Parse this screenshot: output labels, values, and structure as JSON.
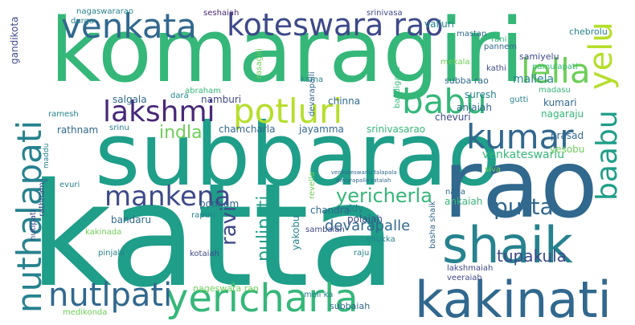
{
  "words": [
    {
      "text": "katta",
      "color": "#1f9e89"
    },
    {
      "text": "komaragiri",
      "color": "#35b779"
    },
    {
      "text": "subbarao",
      "color": "#1f9e89"
    },
    {
      "text": "rao",
      "color": "#31688e"
    },
    {
      "text": "kakinati",
      "color": "#31688e"
    },
    {
      "text": "shaik",
      "color": "#26828e"
    },
    {
      "text": "venkata",
      "color": "#31688e"
    },
    {
      "text": "koteswara rao",
      "color": "#3e4a89"
    },
    {
      "text": "yericharla",
      "color": "#35b779"
    },
    {
      "text": "nuthalapati",
      "color": "#26828e"
    },
    {
      "text": "kumar",
      "color": "#31688e"
    },
    {
      "text": "lakshmi",
      "color": "#482878"
    },
    {
      "text": "potluri",
      "color": "#b5de2b"
    },
    {
      "text": "babu",
      "color": "#35b779"
    },
    {
      "text": "lella",
      "color": "#6ece58"
    },
    {
      "text": "nutlpati",
      "color": "#31688e"
    },
    {
      "text": "mankena",
      "color": "#3e4a89"
    },
    {
      "text": "baabu",
      "color": "#1f9e89"
    },
    {
      "text": "yelu",
      "color": "#b5de2b"
    },
    {
      "text": "yericherla",
      "color": "#35b779"
    },
    {
      "text": "putta",
      "color": "#31688e"
    },
    {
      "text": "ravi",
      "color": "#3e4a89"
    },
    {
      "text": "indla",
      "color": "#6ece58"
    },
    {
      "text": "pulipati",
      "color": "#1f9e89"
    },
    {
      "text": "tupakula",
      "color": "#3e4a89"
    },
    {
      "text": "devarapalle",
      "color": "#31688e"
    },
    {
      "text": "venkateswarlu",
      "color": "#35b779"
    },
    {
      "text": "gandikota",
      "color": "#3e4a89"
    },
    {
      "text": "durga",
      "color": "#26828e"
    },
    {
      "text": "nagaswararao",
      "color": "#26828e"
    },
    {
      "text": "seshaiah",
      "color": "#482878"
    },
    {
      "text": "srinivasa",
      "color": "#3e4a89"
    },
    {
      "text": "valluri",
      "color": "#26828e"
    },
    {
      "text": "mastan",
      "color": "#31688e"
    },
    {
      "text": "chebrolu",
      "color": "#26828e"
    },
    {
      "text": "rani",
      "color": "#35b779"
    },
    {
      "text": "pannem",
      "color": "#31688e"
    },
    {
      "text": "samiyelu",
      "color": "#3e4a89"
    },
    {
      "text": "pamulapati",
      "color": "#35b779"
    },
    {
      "text": "mekala",
      "color": "#6ece58"
    },
    {
      "text": "kathi",
      "color": "#3e4a89"
    },
    {
      "text": "mallela",
      "color": "#26828e"
    },
    {
      "text": "subba rao",
      "color": "#31688e"
    },
    {
      "text": "rasagiri",
      "color": "#6ece58"
    },
    {
      "text": "abraham",
      "color": "#35b779"
    },
    {
      "text": "dara",
      "color": "#26828e"
    },
    {
      "text": "namburi",
      "color": "#3e4a89"
    },
    {
      "text": "salgala",
      "color": "#31688e"
    },
    {
      "text": "karna",
      "color": "#26828e"
    },
    {
      "text": "devarapalli",
      "color": "#31688e"
    },
    {
      "text": "bandigalla",
      "color": "#35b779"
    },
    {
      "text": "suresh",
      "color": "#26828e"
    },
    {
      "text": "madasu",
      "color": "#35b779"
    },
    {
      "text": "gutti",
      "color": "#26828e"
    },
    {
      "text": "kumari",
      "color": "#31688e"
    },
    {
      "text": "nagaraju",
      "color": "#35b779"
    },
    {
      "text": "anjaiah",
      "color": "#31688e"
    },
    {
      "text": "chinna",
      "color": "#31688e"
    },
    {
      "text": "ramesh",
      "color": "#26828e"
    },
    {
      "text": "srinu",
      "color": "#26828e"
    },
    {
      "text": "rathnam",
      "color": "#31688e"
    },
    {
      "text": "chamcharla",
      "color": "#31688e"
    },
    {
      "text": "jayamma",
      "color": "#31688e"
    },
    {
      "text": "srinivasarao",
      "color": "#35b779"
    },
    {
      "text": "chevuri",
      "color": "#3e4a89"
    },
    {
      "text": "prasad",
      "color": "#31688e"
    },
    {
      "text": "yesobu",
      "color": "#6ece58"
    },
    {
      "text": "bandaru",
      "color": "#31688e"
    },
    {
      "text": "evuri",
      "color": "#26828e"
    },
    {
      "text": "siva",
      "color": "#6ece58"
    },
    {
      "text": "naga",
      "color": "#31688e"
    },
    {
      "text": "ankaiah",
      "color": "#35b779"
    },
    {
      "text": "reddy",
      "color": "#26828e"
    },
    {
      "text": "ponnam",
      "color": "#31688e"
    },
    {
      "text": "chandra",
      "color": "#31688e"
    },
    {
      "text": "polaiah",
      "color": "#3e4a89"
    },
    {
      "text": "rapuri",
      "color": "#26828e"
    },
    {
      "text": "kakinada",
      "color": "#6ece58"
    },
    {
      "text": "sambaiah",
      "color": "#3e4a89"
    },
    {
      "text": "yakobu",
      "color": "#26828e"
    },
    {
      "text": "basha shaik",
      "color": "#31688e"
    },
    {
      "text": "kotaiah",
      "color": "#3e4a89"
    },
    {
      "text": "pinjala",
      "color": "#26828e"
    },
    {
      "text": "raju",
      "color": "#26828e"
    },
    {
      "text": "chukka",
      "color": "#26828e"
    },
    {
      "text": "lakshmaiah",
      "color": "#3e4a89"
    },
    {
      "text": "veeraiah",
      "color": "#3e4a89"
    },
    {
      "text": "nageswara rao",
      "color": "#6ece58"
    },
    {
      "text": "meli ka",
      "color": "#26828e"
    },
    {
      "text": "subbaiah",
      "color": "#31688e"
    },
    {
      "text": "medikonda",
      "color": "#6ece58"
    },
    {
      "text": "revella",
      "color": "#6ece58"
    },
    {
      "text": "nutlpati",
      "color": "#3e4a89"
    },
    {
      "text": "rathnam",
      "color": "#3e4a89"
    },
    {
      "text": "maddu",
      "color": "#26828e"
    },
    {
      "text": "devarapalle rataiah",
      "color": "#31688e"
    },
    {
      "text": "venkateswarlu talapala",
      "color": "#31688e"
    }
  ]
}
